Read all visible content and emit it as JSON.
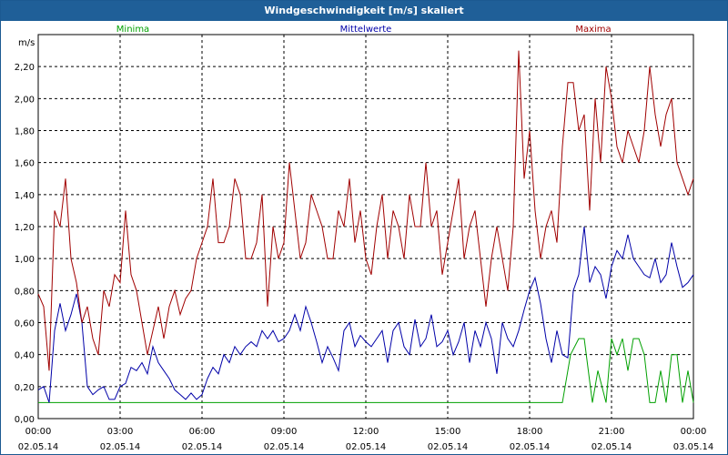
{
  "window": {
    "title": "Windgeschwindigkeit [m/s] skaliert"
  },
  "chart_data": {
    "type": "line",
    "title": "Windgeschwindigkeit [m/s] skaliert",
    "ylabel": "m/s",
    "ylim": [
      0,
      2.4
    ],
    "xlim": [
      0,
      24
    ],
    "grid": true,
    "legend": "top",
    "y_ticks": [
      "0,00",
      "0,20",
      "0,40",
      "0,60",
      "0,80",
      "1,00",
      "1,20",
      "1,40",
      "1,60",
      "1,80",
      "2,00",
      "2,20"
    ],
    "x_ticks": [
      {
        "time": "00:00",
        "date": "02.05.14"
      },
      {
        "time": "03:00",
        "date": "02.05.14"
      },
      {
        "time": "06:00",
        "date": "02.05.14"
      },
      {
        "time": "09:00",
        "date": "02.05.14"
      },
      {
        "time": "12:00",
        "date": "02.05.14"
      },
      {
        "time": "15:00",
        "date": "02.05.14"
      },
      {
        "time": "18:00",
        "date": "02.05.14"
      },
      {
        "time": "21:00",
        "date": "02.05.14"
      },
      {
        "time": "00:00",
        "date": "03.05.14"
      }
    ],
    "series": [
      {
        "name": "Minima",
        "color": "#00a000",
        "x": [
          0,
          19.2,
          19.5,
          19.8,
          20.0,
          20.3,
          20.5,
          20.8,
          21.0,
          21.2,
          21.4,
          21.6,
          21.8,
          22.0,
          22.2,
          22.4,
          22.6,
          22.8,
          23.0,
          23.2,
          23.4,
          23.6,
          23.8,
          24.0
        ],
        "y": [
          0.1,
          0.1,
          0.4,
          0.5,
          0.5,
          0.1,
          0.3,
          0.1,
          0.5,
          0.4,
          0.5,
          0.3,
          0.5,
          0.5,
          0.4,
          0.1,
          0.1,
          0.3,
          0.1,
          0.4,
          0.4,
          0.1,
          0.3,
          0.1
        ]
      },
      {
        "name": "Mittelwerte",
        "color": "#0000a8",
        "x": [
          0,
          0.2,
          0.4,
          0.6,
          0.8,
          1.0,
          1.2,
          1.4,
          1.6,
          1.8,
          2.0,
          2.2,
          2.4,
          2.6,
          2.8,
          3.0,
          3.2,
          3.4,
          3.6,
          3.8,
          4.0,
          4.2,
          4.4,
          4.6,
          4.8,
          5.0,
          5.2,
          5.4,
          5.6,
          5.8,
          6.0,
          6.2,
          6.4,
          6.6,
          6.8,
          7.0,
          7.2,
          7.4,
          7.6,
          7.8,
          8.0,
          8.2,
          8.4,
          8.6,
          8.8,
          9.0,
          9.2,
          9.4,
          9.6,
          9.8,
          10.0,
          10.2,
          10.4,
          10.6,
          10.8,
          11.0,
          11.2,
          11.4,
          11.6,
          11.8,
          12.0,
          12.2,
          12.4,
          12.6,
          12.8,
          13.0,
          13.2,
          13.4,
          13.6,
          13.8,
          14.0,
          14.2,
          14.4,
          14.6,
          14.8,
          15.0,
          15.2,
          15.4,
          15.6,
          15.8,
          16.0,
          16.2,
          16.4,
          16.6,
          16.8,
          17.0,
          17.2,
          17.4,
          17.6,
          17.8,
          18.0,
          18.2,
          18.4,
          18.6,
          18.8,
          19.0,
          19.2,
          19.4,
          19.6,
          19.8,
          20.0,
          20.2,
          20.4,
          20.6,
          20.8,
          21.0,
          21.2,
          21.4,
          21.6,
          21.8,
          22.0,
          22.2,
          22.4,
          22.6,
          22.8,
          23.0,
          23.2,
          23.4,
          23.6,
          23.8,
          24.0
        ],
        "y": [
          0.18,
          0.2,
          0.1,
          0.55,
          0.72,
          0.55,
          0.65,
          0.78,
          0.6,
          0.2,
          0.15,
          0.18,
          0.2,
          0.12,
          0.12,
          0.2,
          0.22,
          0.32,
          0.3,
          0.35,
          0.28,
          0.45,
          0.35,
          0.3,
          0.25,
          0.18,
          0.15,
          0.12,
          0.16,
          0.12,
          0.15,
          0.25,
          0.32,
          0.28,
          0.4,
          0.35,
          0.45,
          0.4,
          0.45,
          0.48,
          0.45,
          0.55,
          0.5,
          0.55,
          0.48,
          0.5,
          0.55,
          0.65,
          0.55,
          0.7,
          0.6,
          0.48,
          0.35,
          0.45,
          0.38,
          0.3,
          0.55,
          0.6,
          0.45,
          0.52,
          0.48,
          0.45,
          0.5,
          0.55,
          0.35,
          0.55,
          0.6,
          0.45,
          0.4,
          0.62,
          0.45,
          0.5,
          0.65,
          0.45,
          0.48,
          0.55,
          0.4,
          0.48,
          0.6,
          0.35,
          0.55,
          0.45,
          0.6,
          0.5,
          0.28,
          0.6,
          0.5,
          0.45,
          0.55,
          0.68,
          0.8,
          0.88,
          0.72,
          0.5,
          0.35,
          0.55,
          0.4,
          0.38,
          0.8,
          0.9,
          1.2,
          0.85,
          0.95,
          0.9,
          0.75,
          0.95,
          1.05,
          1.0,
          1.15,
          1.0,
          0.95,
          0.9,
          0.88,
          1.0,
          0.85,
          0.9,
          1.1,
          0.95,
          0.82,
          0.85,
          0.9
        ]
      },
      {
        "name": "Maxima",
        "color": "#a00000",
        "x": [
          0,
          0.2,
          0.4,
          0.6,
          0.8,
          1.0,
          1.2,
          1.4,
          1.6,
          1.8,
          2.0,
          2.2,
          2.4,
          2.6,
          2.8,
          3.0,
          3.2,
          3.4,
          3.6,
          3.8,
          4.0,
          4.2,
          4.4,
          4.6,
          4.8,
          5.0,
          5.2,
          5.4,
          5.6,
          5.8,
          6.0,
          6.2,
          6.4,
          6.6,
          6.8,
          7.0,
          7.2,
          7.4,
          7.6,
          7.8,
          8.0,
          8.2,
          8.4,
          8.6,
          8.8,
          9.0,
          9.2,
          9.4,
          9.6,
          9.8,
          10.0,
          10.2,
          10.4,
          10.6,
          10.8,
          11.0,
          11.2,
          11.4,
          11.6,
          11.8,
          12.0,
          12.2,
          12.4,
          12.6,
          12.8,
          13.0,
          13.2,
          13.4,
          13.6,
          13.8,
          14.0,
          14.2,
          14.4,
          14.6,
          14.8,
          15.0,
          15.2,
          15.4,
          15.6,
          15.8,
          16.0,
          16.2,
          16.4,
          16.6,
          16.8,
          17.0,
          17.2,
          17.4,
          17.6,
          17.8,
          18.0,
          18.2,
          18.4,
          18.6,
          18.8,
          19.0,
          19.2,
          19.4,
          19.6,
          19.8,
          20.0,
          20.2,
          20.4,
          20.6,
          20.8,
          21.0,
          21.2,
          21.4,
          21.6,
          21.8,
          22.0,
          22.2,
          22.4,
          22.6,
          22.8,
          23.0,
          23.2,
          23.4,
          23.6,
          23.8,
          24.0
        ],
        "y": [
          0.78,
          0.7,
          0.3,
          1.3,
          1.2,
          1.5,
          1.0,
          0.85,
          0.6,
          0.7,
          0.5,
          0.4,
          0.8,
          0.7,
          0.9,
          0.85,
          1.3,
          0.9,
          0.8,
          0.6,
          0.4,
          0.55,
          0.7,
          0.5,
          0.7,
          0.8,
          0.65,
          0.75,
          0.8,
          1.0,
          1.1,
          1.2,
          1.5,
          1.1,
          1.1,
          1.2,
          1.5,
          1.4,
          1.0,
          1.0,
          1.1,
          1.4,
          0.7,
          1.2,
          1.0,
          1.1,
          1.6,
          1.3,
          1.0,
          1.1,
          1.4,
          1.3,
          1.2,
          1.0,
          1.0,
          1.3,
          1.2,
          1.5,
          1.1,
          1.3,
          1.0,
          0.9,
          1.2,
          1.4,
          1.0,
          1.3,
          1.2,
          1.0,
          1.4,
          1.2,
          1.2,
          1.6,
          1.2,
          1.3,
          0.9,
          1.1,
          1.3,
          1.5,
          1.0,
          1.2,
          1.3,
          1.0,
          0.7,
          1.0,
          1.2,
          1.0,
          0.8,
          1.2,
          2.3,
          1.5,
          1.8,
          1.3,
          1.0,
          1.2,
          1.3,
          1.1,
          1.7,
          2.1,
          2.1,
          1.8,
          1.9,
          1.3,
          2.0,
          1.6,
          2.2,
          2.0,
          1.7,
          1.6,
          1.8,
          1.7,
          1.6,
          1.8,
          2.2,
          1.9,
          1.7,
          1.9,
          2.0,
          1.6,
          1.5,
          1.4,
          1.5
        ]
      }
    ]
  }
}
